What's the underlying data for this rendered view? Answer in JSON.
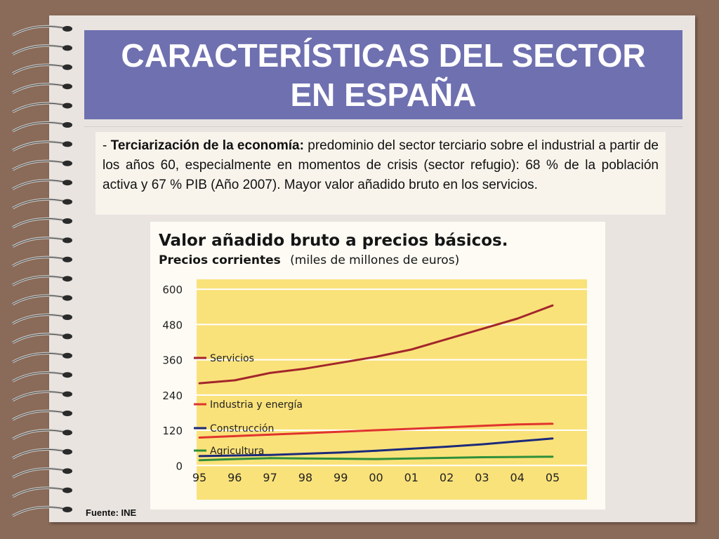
{
  "slide": {
    "title_line1": "CARACTERÍSTICAS DEL SECTOR",
    "title_line2": "EN ESPAÑA",
    "bullet": "- ",
    "bold_term": "Terciarización de la economía:",
    "body_text": " predominio del sector terciario sobre el industrial a partir de los años 60, especialmente en momentos de crisis (sector refugio): 68 % de la población activa y 67 % PIB (Año 2007). Mayor valor añadido bruto en los servicios.",
    "source": "Fuente: INE"
  },
  "colors": {
    "background": "#8a6a58",
    "paper": "#e9e4e0",
    "title_bar": "#6e70b0",
    "plot_area": "#fae27a"
  },
  "chart_data": {
    "type": "line",
    "title": "Valor añadido bruto a precios básicos.",
    "subtitle_bold": "Precios corrientes",
    "subtitle_regular": "(miles de millones de euros)",
    "categories": [
      "95",
      "96",
      "97",
      "98",
      "99",
      "00",
      "01",
      "02",
      "03",
      "04",
      "05"
    ],
    "yticks": [
      0,
      120,
      240,
      360,
      480,
      600
    ],
    "ylim": [
      -40,
      610
    ],
    "grid": true,
    "series": [
      {
        "name": "Servicios",
        "color": "#a3262b",
        "values": [
          280,
          290,
          315,
          330,
          350,
          370,
          395,
          430,
          465,
          500,
          545
        ]
      },
      {
        "name": "Industria y energía",
        "color": "#e0342e",
        "values": [
          95,
          100,
          105,
          110,
          115,
          120,
          125,
          130,
          135,
          140,
          142
        ]
      },
      {
        "name": "Construcción",
        "color": "#1b2a7a",
        "values": [
          32,
          34,
          36,
          40,
          44,
          50,
          57,
          64,
          72,
          82,
          92
        ]
      },
      {
        "name": "Agricultura",
        "color": "#2f8f3a",
        "values": [
          18,
          22,
          25,
          24,
          23,
          22,
          24,
          26,
          28,
          29,
          30
        ]
      }
    ]
  }
}
